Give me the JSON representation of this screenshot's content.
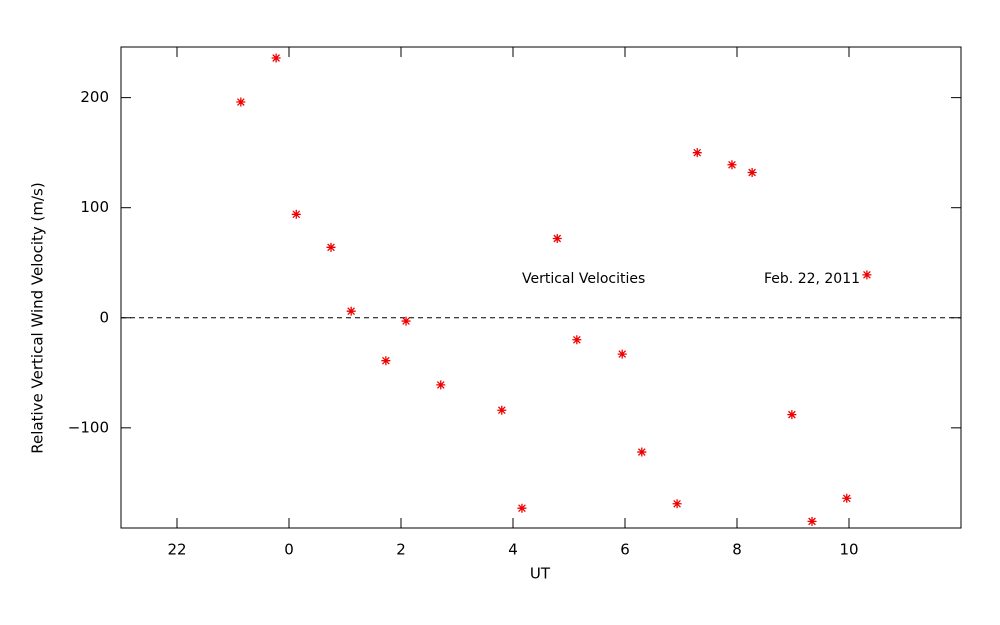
{
  "chart_data": {
    "type": "scatter",
    "xlabel": "UT",
    "ylabel": "Relative Vertical Wind Velocity (m/s)",
    "annotations": [
      "Vertical Velocities",
      "Feb. 22, 2011"
    ],
    "series": [
      {
        "color": "#ee0000",
        "x": [
          -0.86,
          -0.23,
          0.13,
          0.75,
          1.11,
          1.73,
          2.09,
          2.71,
          3.8,
          4.16,
          4.79,
          5.14,
          5.95,
          6.3,
          6.93,
          7.29,
          7.91,
          8.27,
          8.98,
          9.34,
          9.96,
          10.32
        ],
        "values": [
          196,
          236,
          94,
          64,
          6,
          -39,
          -3,
          -61,
          -84,
          -173,
          72,
          -20,
          -33,
          -122,
          -169,
          150,
          139,
          132,
          -88,
          -185,
          -164,
          39
        ]
      }
    ],
    "xlim": [
      -3,
      12
    ],
    "xticks": [
      {
        "value": -2,
        "label": "22"
      },
      0,
      2,
      4,
      6,
      8,
      10
    ],
    "ylim": [
      -191,
      246
    ],
    "yticks": [
      {
        "value": -100,
        "label": "−100"
      },
      0,
      100,
      200
    ],
    "reference_line": 0
  }
}
